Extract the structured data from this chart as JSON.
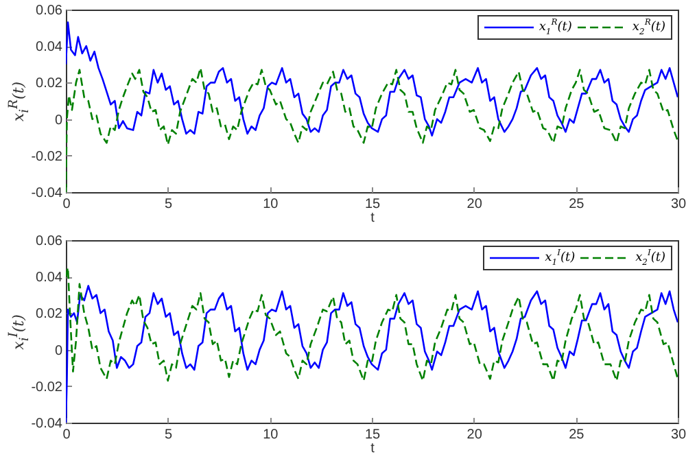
{
  "chart_data": [
    {
      "type": "line",
      "xlabel": "t",
      "ylabel": "x$_{i}$$^{R}$(t)",
      "xlim": [
        0,
        30
      ],
      "ylim": [
        -0.04,
        0.06
      ],
      "xticks": [
        0,
        5,
        10,
        15,
        20,
        25,
        30
      ],
      "yticks": [
        -0.04,
        -0.02,
        0,
        0.02,
        0.04,
        0.06
      ],
      "legend": "top right",
      "series": [
        {
          "name": "x$_{1}$$^{R}$(t)",
          "color": "#0000ff",
          "line_style": "solid",
          "x": [
            0,
            0.1,
            0.25,
            0.45,
            0.6,
            0.8,
            1.0,
            1.2,
            1.4,
            1.6,
            1.8,
            2.0,
            2.2,
            2.4,
            2.6,
            2.8,
            3.0,
            3.3,
            3.5,
            3.7,
            3.9,
            4.1,
            4.3,
            4.5,
            4.7,
            4.9,
            5.1,
            5.3,
            5.5,
            5.7,
            5.9,
            6.1,
            6.3,
            6.5,
            6.7,
            6.9,
            7.1,
            7.3,
            7.5,
            7.7,
            7.9,
            8.1,
            8.3,
            8.5,
            8.7,
            8.9,
            9.1,
            9.3,
            9.5,
            9.7,
            9.9,
            10.1,
            10.3,
            10.6,
            10.8,
            11.0,
            11.2,
            11.4,
            11.6,
            11.8,
            12.0,
            12.2,
            12.4,
            12.6,
            12.8,
            13.0,
            13.2,
            13.4,
            13.6,
            13.8,
            14.0,
            14.2,
            14.4,
            14.6,
            14.8,
            15.0,
            15.3,
            15.5,
            15.7,
            15.9,
            16.1,
            16.3,
            16.6,
            16.8,
            17.0,
            17.2,
            17.4,
            17.6,
            17.8,
            17.95,
            18.2,
            18.4,
            18.6,
            18.8,
            19.0,
            19.3,
            19.6,
            19.9,
            20.2,
            20.4,
            20.6,
            20.8,
            21.0,
            21.2,
            21.5,
            21.7,
            21.9,
            22.1,
            22.3,
            22.5,
            22.8,
            23.1,
            23.3,
            23.5,
            23.7,
            23.9,
            24.1,
            24.3,
            24.5,
            24.7,
            24.9,
            25.1,
            25.3,
            25.5,
            25.8,
            26.0,
            26.2,
            26.4,
            26.6,
            26.8,
            27.0,
            27.2,
            27.4,
            27.6,
            27.8,
            28.0,
            28.2,
            28.4,
            28.7,
            29.0,
            29.2,
            29.4,
            29.6,
            29.8,
            30
          ],
          "values": [
            0.03,
            0.053,
            0.038,
            0.035,
            0.045,
            0.036,
            0.04,
            0.032,
            0.037,
            0.028,
            0.022,
            0.015,
            0.008,
            0.01,
            -0.005,
            -0.001,
            -0.005,
            -0.006,
            0.004,
            0.002,
            0.015,
            0.014,
            0.027,
            0.02,
            0.025,
            0.016,
            0.018,
            0.008,
            0.01,
            0.0,
            -0.008,
            -0.006,
            -0.008,
            0.004,
            0.003,
            0.018,
            0.02,
            0.02,
            0.026,
            0.028,
            0.02,
            0.022,
            0.01,
            0.012,
            0.0,
            -0.008,
            -0.004,
            -0.006,
            0.002,
            0.006,
            0.018,
            0.02,
            0.019,
            0.028,
            0.02,
            0.022,
            0.012,
            0.014,
            0.003,
            0.0,
            -0.007,
            -0.005,
            -0.007,
            0.002,
            0.005,
            0.018,
            0.02,
            0.02,
            0.027,
            0.022,
            0.024,
            0.014,
            0.012,
            0.003,
            -0.002,
            -0.005,
            -0.007,
            0.0,
            0.002,
            0.015,
            0.015,
            0.022,
            0.027,
            0.022,
            0.024,
            0.013,
            0.012,
            0.0,
            -0.004,
            -0.009,
            0.0,
            -0.002,
            0.004,
            0.012,
            0.012,
            0.02,
            0.022,
            0.02,
            0.028,
            0.02,
            0.022,
            0.01,
            0.012,
            0.0,
            -0.007,
            -0.004,
            0.0,
            0.006,
            0.015,
            0.016,
            0.024,
            0.028,
            0.022,
            0.024,
            0.012,
            0.01,
            0.002,
            -0.002,
            -0.007,
            0.0,
            -0.002,
            0.006,
            0.014,
            0.014,
            0.022,
            0.022,
            0.027,
            0.02,
            0.022,
            0.01,
            0.008,
            0.0,
            -0.004,
            -0.007,
            0.0,
            0.002,
            0.01,
            0.016,
            0.018,
            0.02,
            0.027,
            0.022,
            0.028,
            0.02,
            0.012
          ]
        },
        {
          "name": "x$_{2}$$^{R}$(t)",
          "color": "#008000",
          "line_style": "dashed",
          "x": [
            0,
            0.05,
            0.15,
            0.3,
            0.5,
            0.67,
            0.9,
            1.1,
            1.3,
            1.5,
            1.7,
            2.0,
            2.2,
            2.4,
            2.6,
            2.8,
            3.0,
            3.25,
            3.4,
            3.6,
            3.8,
            4.0,
            4.2,
            4.4,
            4.6,
            4.8,
            5.0,
            5.2,
            5.4,
            5.6,
            5.8,
            6.0,
            6.2,
            6.4,
            6.6,
            6.8,
            7.0,
            7.2,
            7.4,
            7.6,
            7.8,
            8.0,
            8.2,
            8.4,
            8.6,
            8.8,
            9.0,
            9.2,
            9.4,
            9.6,
            9.8,
            10.0,
            10.3,
            10.5,
            10.8,
            11.0,
            11.2,
            11.4,
            11.6,
            11.8,
            12.0,
            12.3,
            12.6,
            12.8,
            13.1,
            13.3,
            13.5,
            13.7,
            13.9,
            14.1,
            14.3,
            14.6,
            14.8,
            15.0,
            15.2,
            15.5,
            15.8,
            16.0,
            16.2,
            16.4,
            16.6,
            16.8,
            17.0,
            17.2,
            17.5,
            17.7,
            17.9,
            18.1,
            18.4,
            18.7,
            18.9,
            19.1,
            19.3,
            19.5,
            19.8,
            20.0,
            20.3,
            20.5,
            20.8,
            21.0,
            21.2,
            21.4,
            21.7,
            21.9,
            22.2,
            22.4,
            22.6,
            22.9,
            23.1,
            23.4,
            23.6,
            23.9,
            24.1,
            24.3,
            24.5,
            24.8,
            25.0,
            25.2,
            25.4,
            25.6,
            25.9,
            26.1,
            26.4,
            26.7,
            27.0,
            27.2,
            27.4,
            27.6,
            27.9,
            28.2,
            28.4,
            28.6,
            28.8,
            29.0,
            29.3,
            29.5,
            29.8,
            30
          ],
          "values": [
            -0.04,
            0.0,
            0.013,
            0.005,
            0.02,
            0.027,
            0.012,
            0.01,
            0.0,
            0.002,
            -0.008,
            -0.013,
            -0.004,
            -0.006,
            0.005,
            0.012,
            0.018,
            0.025,
            0.022,
            0.027,
            0.015,
            0.012,
            0.004,
            0.005,
            -0.006,
            -0.004,
            -0.014,
            -0.006,
            -0.008,
            0.004,
            0.01,
            0.016,
            0.022,
            0.02,
            0.028,
            0.016,
            0.014,
            0.004,
            0.006,
            -0.004,
            -0.003,
            -0.011,
            -0.004,
            -0.006,
            0.004,
            0.01,
            0.016,
            0.02,
            0.019,
            0.027,
            0.018,
            0.016,
            0.008,
            0.01,
            0.0,
            -0.002,
            -0.008,
            -0.013,
            -0.004,
            -0.006,
            0.004,
            0.012,
            0.02,
            0.019,
            0.026,
            0.016,
            0.014,
            0.004,
            0.006,
            -0.004,
            -0.006,
            -0.013,
            -0.004,
            -0.005,
            0.006,
            0.014,
            0.02,
            0.019,
            0.027,
            0.016,
            0.014,
            0.004,
            0.004,
            -0.005,
            -0.013,
            -0.004,
            -0.006,
            0.005,
            0.012,
            0.02,
            0.019,
            0.027,
            0.016,
            0.014,
            0.004,
            0.005,
            -0.005,
            -0.006,
            -0.012,
            -0.004,
            -0.005,
            0.006,
            0.014,
            0.02,
            0.026,
            0.016,
            0.014,
            0.004,
            0.005,
            -0.005,
            -0.006,
            -0.013,
            -0.004,
            -0.005,
            0.006,
            0.016,
            0.02,
            0.027,
            0.016,
            0.014,
            0.004,
            0.005,
            -0.005,
            -0.006,
            -0.013,
            -0.004,
            -0.005,
            0.006,
            0.014,
            0.02,
            0.019,
            0.027,
            0.016,
            0.014,
            0.004,
            0.005,
            -0.006,
            -0.012
          ]
        }
      ]
    },
    {
      "type": "line",
      "xlabel": "t",
      "ylabel": "x$_{i}$$^{I}$(t)",
      "xlim": [
        0,
        30
      ],
      "ylim": [
        -0.04,
        0.06
      ],
      "xticks": [
        0,
        5,
        10,
        15,
        20,
        25,
        30
      ],
      "yticks": [
        -0.04,
        -0.02,
        0,
        0.02,
        0.04,
        0.06
      ],
      "legend": "top right",
      "series": [
        {
          "name": "x$_{1}$$^{I}$(t)",
          "color": "#0000ff",
          "line_style": "solid",
          "x": [
            0,
            0.05,
            0.1,
            0.25,
            0.4,
            0.55,
            0.7,
            0.9,
            1.1,
            1.3,
            1.5,
            1.7,
            1.9,
            2.1,
            2.3,
            2.5,
            2.7,
            2.9,
            3.1,
            3.3,
            3.5,
            3.7,
            3.9,
            4.1,
            4.3,
            4.5,
            4.7,
            4.9,
            5.1,
            5.3,
            5.5,
            5.7,
            5.9,
            6.1,
            6.3,
            6.5,
            6.7,
            6.9,
            7.1,
            7.3,
            7.5,
            7.7,
            7.9,
            8.1,
            8.3,
            8.5,
            8.7,
            8.9,
            9.1,
            9.3,
            9.5,
            9.7,
            9.9,
            10.1,
            10.3,
            10.6,
            10.8,
            11.0,
            11.2,
            11.4,
            11.6,
            11.8,
            12.0,
            12.2,
            12.4,
            12.6,
            12.8,
            13.0,
            13.2,
            13.4,
            13.6,
            13.8,
            14.0,
            14.2,
            14.4,
            14.6,
            14.8,
            15.0,
            15.3,
            15.5,
            15.7,
            15.9,
            16.1,
            16.3,
            16.6,
            16.8,
            17.0,
            17.2,
            17.4,
            17.6,
            17.8,
            17.95,
            18.2,
            18.4,
            18.6,
            18.8,
            19.0,
            19.3,
            19.6,
            19.9,
            20.2,
            20.4,
            20.6,
            20.8,
            21.0,
            21.2,
            21.5,
            21.7,
            21.9,
            22.1,
            22.3,
            22.5,
            22.8,
            23.1,
            23.3,
            23.5,
            23.7,
            23.9,
            24.1,
            24.3,
            24.5,
            24.7,
            24.9,
            25.1,
            25.3,
            25.5,
            25.8,
            26.0,
            26.2,
            26.4,
            26.6,
            26.8,
            27.0,
            27.2,
            27.4,
            27.6,
            27.8,
            28.0,
            28.2,
            28.4,
            28.7,
            29.0,
            29.2,
            29.4,
            29.6,
            29.8,
            30
          ],
          "values": [
            -0.04,
            -0.017,
            0.022,
            0.018,
            0.02,
            0.015,
            0.03,
            0.027,
            0.035,
            0.028,
            0.03,
            0.02,
            0.022,
            0.01,
            0.005,
            -0.01,
            -0.004,
            -0.006,
            -0.01,
            -0.008,
            0.002,
            0.004,
            0.018,
            0.02,
            0.031,
            0.025,
            0.028,
            0.018,
            0.02,
            0.008,
            0.01,
            -0.002,
            -0.01,
            -0.008,
            -0.011,
            0.002,
            0.004,
            0.02,
            0.022,
            0.022,
            0.028,
            0.031,
            0.022,
            0.024,
            0.01,
            0.012,
            -0.002,
            -0.011,
            -0.006,
            -0.008,
            0.0,
            0.005,
            0.02,
            0.022,
            0.021,
            0.032,
            0.022,
            0.024,
            0.012,
            0.014,
            0.002,
            -0.002,
            -0.01,
            -0.007,
            -0.01,
            0.0,
            0.004,
            0.02,
            0.022,
            0.022,
            0.031,
            0.024,
            0.026,
            0.014,
            0.012,
            0.002,
            -0.004,
            -0.008,
            -0.011,
            -0.002,
            0.0,
            0.017,
            0.017,
            0.025,
            0.031,
            0.025,
            0.027,
            0.014,
            0.012,
            -0.001,
            -0.006,
            -0.011,
            -0.001,
            -0.003,
            0.004,
            0.013,
            0.013,
            0.022,
            0.024,
            0.022,
            0.032,
            0.022,
            0.024,
            0.01,
            0.012,
            -0.001,
            -0.01,
            -0.006,
            -0.001,
            0.006,
            0.017,
            0.018,
            0.027,
            0.032,
            0.025,
            0.027,
            0.013,
            0.011,
            0.001,
            -0.004,
            -0.01,
            -0.001,
            -0.003,
            0.006,
            0.016,
            0.016,
            0.025,
            0.025,
            0.031,
            0.022,
            0.025,
            0.01,
            0.008,
            -0.001,
            -0.006,
            -0.01,
            -0.001,
            0.001,
            0.01,
            0.018,
            0.02,
            0.022,
            0.031,
            0.025,
            0.032,
            0.022,
            0.015
          ]
        },
        {
          "name": "x$_{2}$$^{I}$(t)",
          "color": "#008000",
          "line_style": "dashed",
          "x": [
            0,
            0.1,
            0.2,
            0.35,
            0.5,
            0.67,
            0.9,
            1.1,
            1.3,
            1.5,
            1.7,
            2.0,
            2.2,
            2.4,
            2.6,
            2.8,
            3.0,
            3.25,
            3.4,
            3.6,
            3.8,
            4.0,
            4.2,
            4.4,
            4.6,
            4.8,
            5.0,
            5.2,
            5.4,
            5.6,
            5.8,
            6.0,
            6.2,
            6.4,
            6.6,
            6.8,
            7.0,
            7.2,
            7.4,
            7.6,
            7.8,
            8.0,
            8.2,
            8.4,
            8.6,
            8.8,
            9.0,
            9.2,
            9.4,
            9.6,
            9.8,
            10.0,
            10.3,
            10.5,
            10.8,
            11.0,
            11.2,
            11.4,
            11.6,
            11.8,
            12.0,
            12.3,
            12.6,
            12.8,
            13.1,
            13.3,
            13.5,
            13.7,
            13.9,
            14.1,
            14.3,
            14.6,
            14.8,
            15.0,
            15.2,
            15.5,
            15.8,
            16.0,
            16.2,
            16.4,
            16.6,
            16.8,
            17.0,
            17.2,
            17.5,
            17.7,
            17.9,
            18.1,
            18.4,
            18.7,
            18.9,
            19.1,
            19.3,
            19.5,
            19.8,
            20.0,
            20.3,
            20.5,
            20.8,
            21.0,
            21.2,
            21.4,
            21.7,
            21.9,
            22.2,
            22.4,
            22.6,
            22.9,
            23.1,
            23.4,
            23.6,
            23.9,
            24.1,
            24.3,
            24.5,
            24.8,
            25.0,
            25.2,
            25.4,
            25.6,
            25.9,
            26.1,
            26.4,
            26.7,
            27.0,
            27.2,
            27.4,
            27.6,
            27.9,
            28.2,
            28.4,
            28.6,
            28.8,
            29.0,
            29.3,
            29.5,
            29.8,
            30
          ],
          "values": [
            0.04,
            0.045,
            0.02,
            -0.012,
            0.005,
            0.036,
            0.02,
            0.012,
            0.0,
            0.002,
            -0.01,
            -0.016,
            -0.006,
            -0.008,
            0.004,
            0.012,
            0.02,
            0.027,
            0.024,
            0.03,
            0.016,
            0.012,
            0.003,
            0.004,
            -0.008,
            -0.006,
            -0.017,
            -0.008,
            -0.01,
            0.003,
            0.01,
            0.017,
            0.024,
            0.022,
            0.031,
            0.017,
            0.015,
            0.003,
            0.005,
            -0.006,
            -0.005,
            -0.015,
            -0.006,
            -0.008,
            0.003,
            0.01,
            0.017,
            0.022,
            0.021,
            0.03,
            0.019,
            0.017,
            0.008,
            0.01,
            -0.002,
            -0.004,
            -0.011,
            -0.016,
            -0.006,
            -0.008,
            0.003,
            0.012,
            0.022,
            0.021,
            0.029,
            0.017,
            0.015,
            0.003,
            0.005,
            -0.006,
            -0.008,
            -0.017,
            -0.006,
            -0.007,
            0.005,
            0.015,
            0.022,
            0.021,
            0.03,
            0.017,
            0.015,
            0.003,
            0.003,
            -0.008,
            -0.017,
            -0.006,
            -0.008,
            0.004,
            0.012,
            0.022,
            0.021,
            0.03,
            0.017,
            0.015,
            0.003,
            0.004,
            -0.008,
            -0.008,
            -0.016,
            -0.006,
            -0.007,
            0.005,
            0.015,
            0.022,
            0.029,
            0.017,
            0.015,
            0.003,
            0.004,
            -0.008,
            -0.008,
            -0.017,
            -0.006,
            -0.007,
            0.005,
            0.017,
            0.022,
            0.03,
            0.017,
            0.015,
            0.003,
            0.004,
            -0.008,
            -0.008,
            -0.017,
            -0.006,
            -0.007,
            0.005,
            0.015,
            0.022,
            0.021,
            0.03,
            0.017,
            0.015,
            0.003,
            0.004,
            -0.008,
            -0.016
          ]
        }
      ]
    }
  ]
}
